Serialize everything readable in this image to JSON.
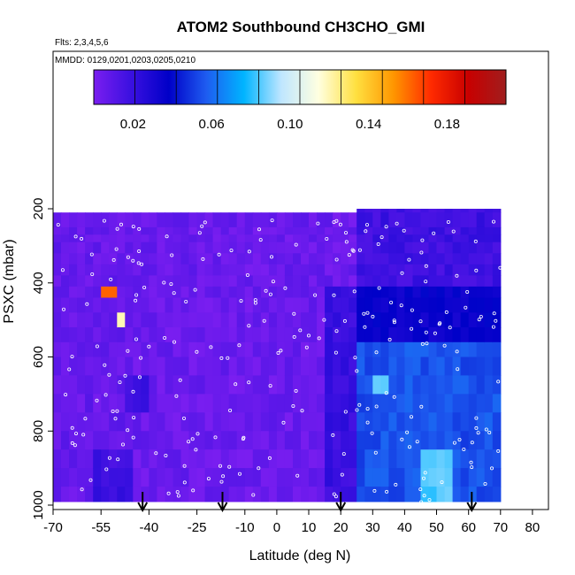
{
  "chart_data": {
    "type": "heatmap",
    "title": "ATOM2 Southbound CH3CHO_GMI",
    "subtitle_flights": "Flts: 2,3,4,5,6",
    "subtitle_dates": "MMDD: 0129,0201,0203,0205,0210",
    "xlabel": "Latitude (deg N)",
    "ylabel": "PSXC (mbar)",
    "xlim": [
      -70,
      85
    ],
    "ylim": [
      1000,
      190
    ],
    "x_ticks": [
      -70,
      -55,
      -40,
      -25,
      -10,
      0,
      10,
      20,
      30,
      40,
      50,
      60,
      70,
      80
    ],
    "x_tick_labels": [
      "-70",
      "-55",
      "-40",
      "-25",
      "-10",
      "0",
      "10",
      "20",
      "30",
      "40",
      "50",
      "60",
      "70",
      "80"
    ],
    "y_ticks": [
      200,
      400,
      600,
      800,
      1000
    ],
    "y_tick_labels": [
      "200",
      "400",
      "600",
      "800",
      "1000"
    ],
    "colorbar": {
      "range": [
        0.0,
        0.21
      ],
      "ticks": [
        0.02,
        0.06,
        0.1,
        0.14,
        0.18
      ],
      "tick_labels": [
        "0.02",
        "0.06",
        "0.10",
        "0.14",
        "0.18"
      ],
      "colors": [
        "#7a1ef0",
        "#3a10e0",
        "#0000c8",
        "#1e5cf0",
        "#00b4ff",
        "#bfe6ff",
        "#ffffe0",
        "#ffe040",
        "#ff9600",
        "#ff2a00",
        "#c80000",
        "#a01e1e"
      ]
    },
    "profile_arrows_lat": [
      -42,
      -17,
      20,
      61
    ],
    "pressure_levels": [
      210,
      250,
      270,
      290,
      320,
      350,
      380,
      410,
      440,
      480,
      520,
      560,
      600,
      650,
      700,
      750,
      800,
      850,
      900,
      950,
      990
    ],
    "regions": [
      {
        "lat": [
          -70,
          -45
        ],
        "p": [
          210,
          1000
        ],
        "value": 0.006
      },
      {
        "lat": [
          -45,
          24
        ],
        "p": [
          210,
          1000
        ],
        "value": 0.005
      },
      {
        "lat": [
          24,
          70
        ],
        "p": [
          190,
          420
        ],
        "value": 0.018
      },
      {
        "lat": [
          24,
          70
        ],
        "p": [
          420,
          560
        ],
        "value": 0.035
      },
      {
        "lat": [
          24,
          70
        ],
        "p": [
          560,
          1000
        ],
        "value": 0.055
      },
      {
        "lat": [
          44,
          56
        ],
        "p": [
          850,
          1000
        ],
        "value": 0.085
      },
      {
        "lat": [
          29,
          35
        ],
        "p": [
          650,
          720
        ],
        "value": 0.09
      },
      {
        "lat": [
          16,
          24
        ],
        "p": [
          400,
          1000
        ],
        "value": 0.02
      },
      {
        "lat": [
          -58,
          -44
        ],
        "p": [
          850,
          1000
        ],
        "value": 0.018
      },
      {
        "lat": [
          -48,
          -40
        ],
        "p": [
          660,
          740
        ],
        "value": 0.02
      },
      {
        "lat": [
          -55,
          -50
        ],
        "p": [
          410,
          440
        ],
        "value": 0.16
      },
      {
        "lat": [
          -51,
          -47
        ],
        "p": [
          480,
          520
        ],
        "value": 0.12
      }
    ]
  }
}
